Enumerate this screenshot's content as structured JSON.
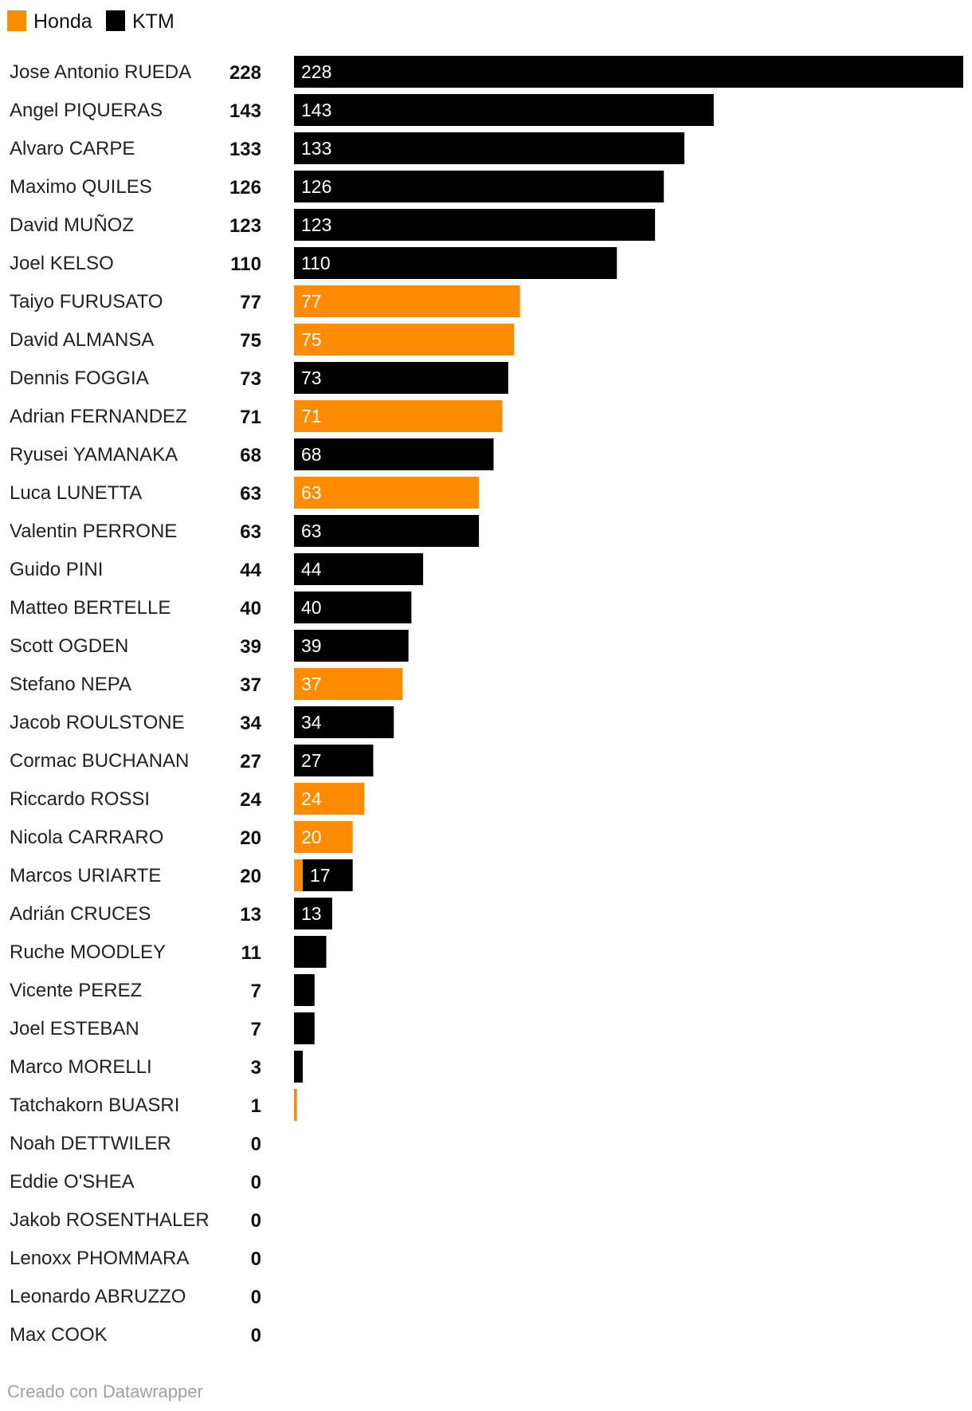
{
  "legend": [
    {
      "name": "Honda",
      "color": "#ff8c00"
    },
    {
      "name": "KTM",
      "color": "#000000"
    }
  ],
  "footer": "Creado con Datawrapper",
  "chart_data": {
    "type": "bar",
    "orientation": "horizontal",
    "stacked": true,
    "categories": [
      "Jose Antonio RUEDA",
      "Angel PIQUERAS",
      "Alvaro CARPE",
      "Maximo QUILES",
      "David MUÑOZ",
      "Joel KELSO",
      "Taiyo FURUSATO",
      "David ALMANSA",
      "Dennis FOGGIA",
      "Adrian FERNANDEZ",
      "Ryusei YAMANAKA",
      "Luca LUNETTA",
      "Valentin PERRONE",
      "Guido PINI",
      "Matteo BERTELLE",
      "Scott OGDEN",
      "Stefano NEPA",
      "Jacob ROULSTONE",
      "Cormac BUCHANAN",
      "Riccardo ROSSI",
      "Nicola CARRARO",
      "Marcos URIARTE",
      "Adrián CRUCES",
      "Ruche MOODLEY",
      "Vicente PEREZ",
      "Joel ESTEBAN",
      "Marco MORELLI",
      "Tatchakorn BUASRI",
      "Noah DETTWILER",
      "Eddie O'SHEA",
      "Jakob ROSENTHALER",
      "Lenoxx PHOMMARA",
      "Leonardo ABRUZZO",
      "Max COOK"
    ],
    "totals": [
      228,
      143,
      133,
      126,
      123,
      110,
      77,
      75,
      73,
      71,
      68,
      63,
      63,
      44,
      40,
      39,
      37,
      34,
      27,
      24,
      20,
      20,
      13,
      11,
      7,
      7,
      3,
      1,
      0,
      0,
      0,
      0,
      0,
      0
    ],
    "series": [
      {
        "name": "Honda",
        "color": "#ff8c00",
        "values": [
          0,
          0,
          0,
          0,
          0,
          0,
          77,
          75,
          0,
          71,
          0,
          63,
          0,
          0,
          0,
          0,
          37,
          0,
          0,
          24,
          20,
          3,
          0,
          0,
          0,
          0,
          0,
          1,
          0,
          0,
          0,
          0,
          0,
          0
        ]
      },
      {
        "name": "KTM",
        "color": "#000000",
        "values": [
          228,
          143,
          133,
          126,
          123,
          110,
          0,
          0,
          73,
          0,
          68,
          0,
          63,
          44,
          40,
          39,
          0,
          34,
          27,
          0,
          0,
          17,
          13,
          11,
          7,
          7,
          3,
          0,
          0,
          0,
          0,
          0,
          0,
          0
        ]
      }
    ],
    "bar_labels": [
      [
        "",
        "228"
      ],
      [
        "",
        "143"
      ],
      [
        "",
        "133"
      ],
      [
        "",
        "126"
      ],
      [
        "",
        "123"
      ],
      [
        "",
        "110"
      ],
      [
        "77",
        ""
      ],
      [
        "75",
        ""
      ],
      [
        "",
        "73"
      ],
      [
        "71",
        ""
      ],
      [
        "",
        "68"
      ],
      [
        "63",
        ""
      ],
      [
        "",
        "63"
      ],
      [
        "",
        "44"
      ],
      [
        "",
        "40"
      ],
      [
        "",
        "39"
      ],
      [
        "37",
        ""
      ],
      [
        "",
        "34"
      ],
      [
        "",
        "27"
      ],
      [
        "24",
        ""
      ],
      [
        "20",
        ""
      ],
      [
        "",
        "17"
      ],
      [
        "",
        "13"
      ],
      [
        "",
        ""
      ],
      [
        "",
        ""
      ],
      [
        "",
        ""
      ],
      [
        "",
        ""
      ],
      [
        "",
        ""
      ],
      [
        "",
        ""
      ],
      [
        "",
        ""
      ],
      [
        "",
        ""
      ],
      [
        "",
        ""
      ],
      [
        "",
        ""
      ],
      [
        "",
        ""
      ]
    ],
    "xlim": [
      0,
      228
    ],
    "legend_position": "top-left"
  }
}
